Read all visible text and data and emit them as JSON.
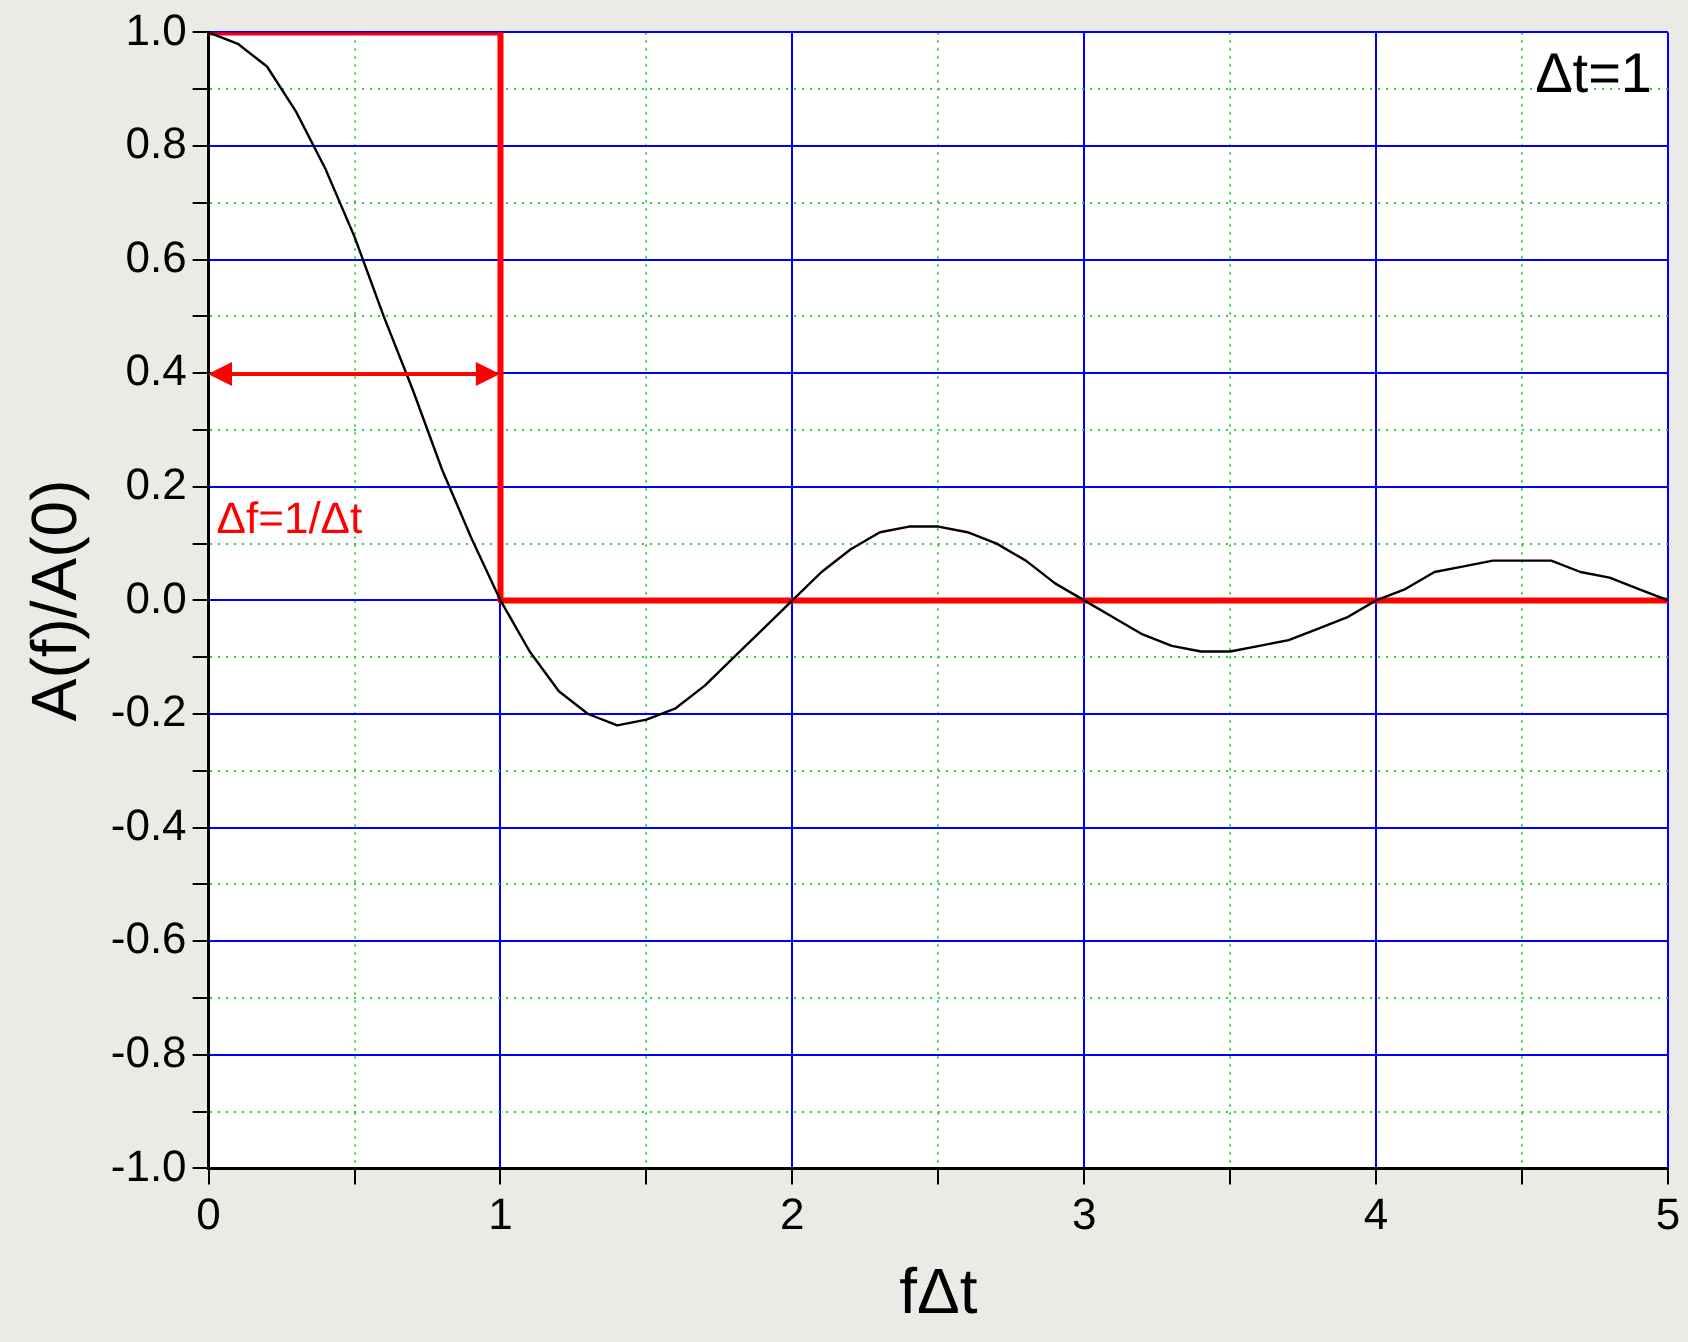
{
  "chart_data": {
    "type": "line",
    "xlabel": "fΔt",
    "ylabel": "A(f)/A(0)",
    "xlim": [
      0,
      5
    ],
    "ylim": [
      -1,
      1
    ],
    "xticks": [
      0,
      {
        "value": 0.5,
        "label": null
      },
      1,
      {
        "value": 1.5,
        "label": null
      },
      2,
      {
        "value": 2.5,
        "label": null
      },
      3,
      {
        "value": 3.5,
        "label": null
      },
      4,
      {
        "value": 4.5,
        "label": null
      },
      5
    ],
    "yticks": [
      {
        "value": -1,
        "label": "-1.0"
      },
      {
        "value": -0.9,
        "label": null
      },
      {
        "value": -0.8,
        "label": "-0.8"
      },
      {
        "value": -0.7,
        "label": null
      },
      {
        "value": -0.6,
        "label": "-0.6"
      },
      {
        "value": -0.5,
        "label": null
      },
      {
        "value": -0.4,
        "label": "-0.4"
      },
      {
        "value": -0.3,
        "label": null
      },
      {
        "value": -0.2,
        "label": "-0.2"
      },
      {
        "value": -0.1,
        "label": null
      },
      {
        "value": 0,
        "label": "0.0"
      },
      {
        "value": 0.1,
        "label": null
      },
      {
        "value": 0.2,
        "label": "0.2"
      },
      {
        "value": 0.3,
        "label": null
      },
      {
        "value": 0.4,
        "label": "0.4"
      },
      {
        "value": 0.5,
        "label": null
      },
      {
        "value": 0.6,
        "label": "0.6"
      },
      {
        "value": 0.7,
        "label": null
      },
      {
        "value": 0.8,
        "label": "0.8"
      },
      {
        "value": 0.9,
        "label": null
      },
      {
        "value": 1,
        "label": "1.0"
      }
    ],
    "grid": true,
    "legend": false,
    "marker": "none",
    "line_style": "solid",
    "annotations": [
      "Δt=1",
      "Δf=1/Δt"
    ],
    "series": [
      {
        "color": "#000000",
        "x": [
          0,
          0.1,
          0.2,
          0.3,
          0.4,
          0.5,
          0.6,
          0.7,
          0.8,
          0.9,
          1,
          1.1,
          1.2,
          1.3,
          1.4,
          1.5,
          1.6,
          1.7,
          1.8,
          1.9,
          2,
          2.1,
          2.2,
          2.3,
          2.4,
          2.5,
          2.6,
          2.7,
          2.8,
          2.9,
          3,
          3.1,
          3.2,
          3.3,
          3.4,
          3.5,
          3.6,
          3.7,
          3.8,
          3.9,
          4,
          4.1,
          4.2,
          4.3,
          4.4,
          4.5,
          4.6,
          4.7,
          4.8,
          4.9,
          5
        ],
        "values": [
          1,
          0.98,
          0.94,
          0.86,
          0.76,
          0.64,
          0.5,
          0.37,
          0.23,
          0.11,
          0,
          -0.09,
          -0.16,
          -0.2,
          -0.22,
          -0.21,
          -0.19,
          -0.15,
          -0.1,
          -0.05,
          0,
          0.05,
          0.09,
          0.12,
          0.13,
          0.13,
          0.12,
          0.1,
          0.07,
          0.03,
          0,
          -0.03,
          -0.06,
          -0.08,
          -0.09,
          -0.09,
          -0.08,
          -0.07,
          -0.05,
          -0.03,
          0,
          0.02,
          0.05,
          0.06,
          0.07,
          0.07,
          0.07,
          0.05,
          0.04,
          0.02,
          0
        ]
      },
      {
        "color": "#ff0000",
        "x": [
          0,
          1,
          1,
          5
        ],
        "values": [
          1,
          1,
          0,
          0
        ]
      }
    ]
  }
}
